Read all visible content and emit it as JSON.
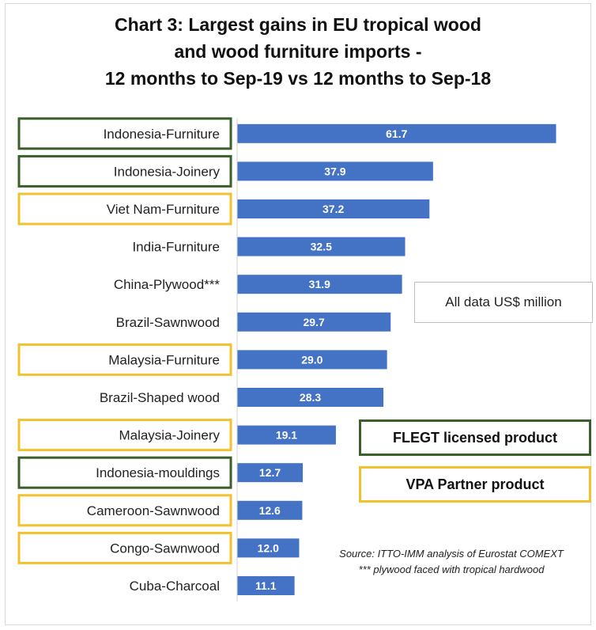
{
  "chart_data": {
    "type": "bar",
    "orientation": "horizontal",
    "title": "Chart 3: Largest gains in EU tropical wood and wood furniture imports - 12 months to Sep-19 vs 12 months to Sep-18",
    "title_lines": [
      "Chart 3: Largest gains in EU tropical wood",
      "and wood furniture imports -",
      "12 months to Sep-19 vs 12 months to Sep-18"
    ],
    "categories": [
      "Indonesia-Furniture",
      "Indonesia-Joinery",
      "Viet Nam-Furniture",
      "India-Furniture",
      "China-Plywood***",
      "Brazil-Sawnwood",
      "Malaysia-Furniture",
      "Brazil-Shaped wood",
      "Malaysia-Joinery",
      "Indonesia-mouldings",
      "Cameroon-Sawnwood",
      "Congo-Sawnwood",
      "Cuba-Charcoal"
    ],
    "values": [
      61.7,
      37.9,
      37.2,
      32.5,
      31.9,
      29.7,
      29.0,
      28.3,
      19.1,
      12.7,
      12.6,
      12.0,
      11.1
    ],
    "data_labels": [
      "61.7",
      "37.9",
      "37.2",
      "32.5",
      "31.9",
      "29.7",
      "29.0",
      "28.3",
      "19.1",
      "12.7",
      "12.6",
      "12.0",
      "11.1"
    ],
    "category_tags": [
      "flegt",
      "flegt",
      "vpa",
      "none",
      "none",
      "none",
      "vpa",
      "none",
      "vpa",
      "flegt",
      "vpa",
      "vpa",
      "none"
    ],
    "xlim": [
      0,
      65
    ],
    "grid": false,
    "xlabel": "",
    "ylabel": "",
    "bar_color": "#4472c4",
    "flegt_color": "#3a5f2a",
    "vpa_color": "#f2c12e",
    "note": "All data US$ million",
    "legend": {
      "flegt_label": "FLEGT licensed product",
      "vpa_label": "VPA Partner product"
    },
    "source_lines": [
      "Source: ITTO-IMM analysis of Eurostat COMEXT",
      "*** plywood faced with tropical hardwood"
    ]
  }
}
